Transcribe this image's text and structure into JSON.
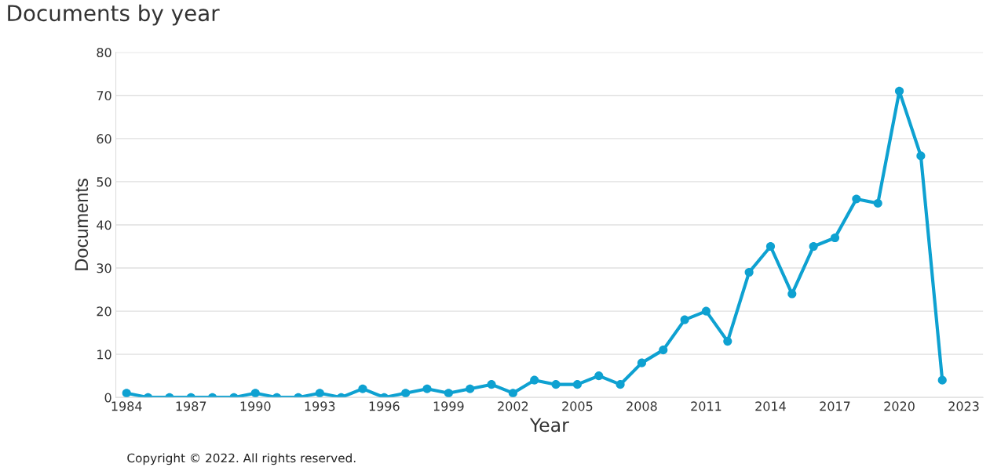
{
  "chart_data": {
    "type": "line",
    "title": "Documents by year",
    "xlabel": "Year",
    "ylabel": "Documents",
    "x": [
      1984,
      1985,
      1986,
      1987,
      1988,
      1989,
      1990,
      1991,
      1992,
      1993,
      1994,
      1995,
      1996,
      1997,
      1998,
      1999,
      2000,
      2001,
      2002,
      2003,
      2004,
      2005,
      2006,
      2007,
      2008,
      2009,
      2010,
      2011,
      2012,
      2013,
      2014,
      2015,
      2016,
      2017,
      2018,
      2019,
      2020,
      2021,
      2022
    ],
    "series": [
      {
        "color": "#0ea1d1",
        "values": [
          1,
          0,
          0,
          0,
          0,
          0,
          1,
          0,
          0,
          1,
          0,
          2,
          0,
          1,
          2,
          1,
          2,
          3,
          1,
          4,
          3,
          3,
          5,
          3,
          8,
          11,
          18,
          20,
          13,
          29,
          35,
          24,
          35,
          37,
          46,
          45,
          71,
          56,
          4
        ]
      }
    ],
    "xlim": [
      1983.5,
      2023.9
    ],
    "xticks": [
      1984,
      1987,
      1990,
      1993,
      1996,
      1999,
      2002,
      2005,
      2008,
      2011,
      2014,
      2017,
      2020,
      2023
    ],
    "ylim": [
      0,
      80
    ],
    "yticks": [
      0,
      10,
      20,
      30,
      40,
      50,
      60,
      70,
      80
    ],
    "grid": "y",
    "marker": "circle",
    "line_style": "solid",
    "annotations": [
      "Copyright © 2022. All rights reserved."
    ]
  }
}
